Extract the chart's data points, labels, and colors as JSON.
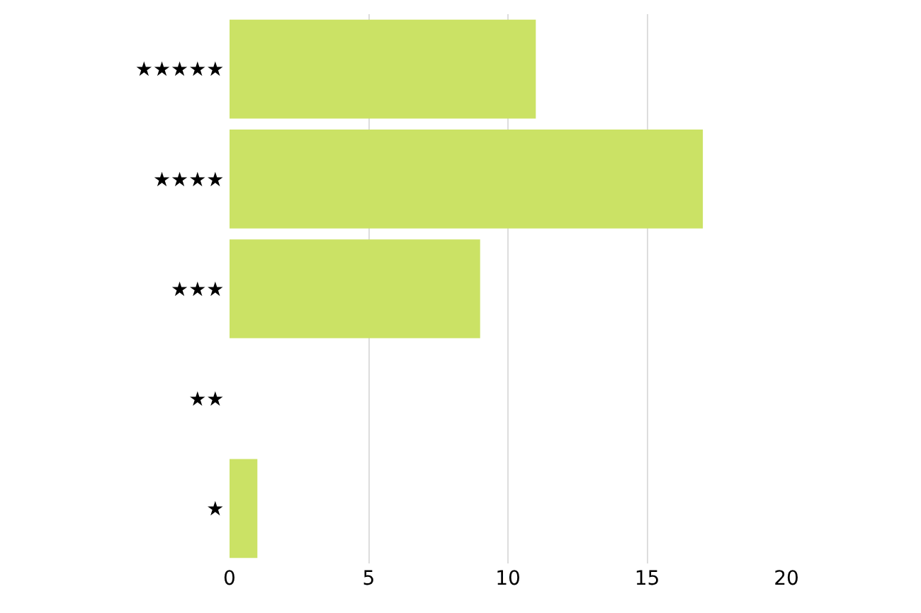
{
  "chart_data": {
    "type": "bar",
    "orientation": "horizontal",
    "categories": [
      "★★★★★",
      "★★★★",
      "★★★",
      "★★",
      "★"
    ],
    "values": [
      11,
      17,
      9,
      0,
      1
    ],
    "color": "#cbe265",
    "xlim": [
      0,
      20
    ],
    "xticks": [
      0,
      5,
      10,
      15,
      20
    ],
    "grid": "x"
  }
}
